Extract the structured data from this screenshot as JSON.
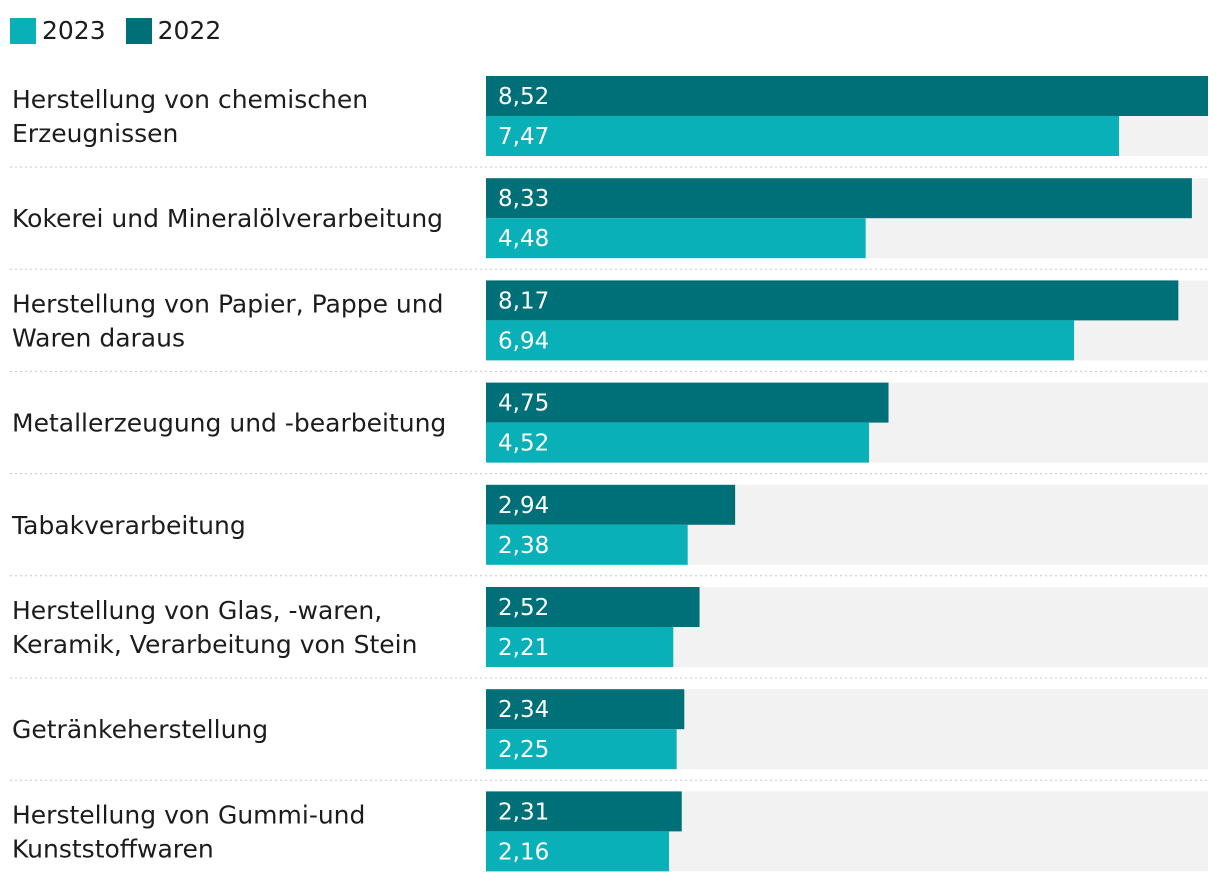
{
  "colors": {
    "y2023": "#0ab0b8",
    "y2022": "#007078",
    "track": "#f2f2f2",
    "separator": "#c8c8c8"
  },
  "legend": [
    {
      "label": "2023",
      "color": "#0ab0b8"
    },
    {
      "label": "2022",
      "color": "#007078"
    }
  ],
  "chart_data": {
    "type": "bar",
    "orientation": "horizontal",
    "xlim": [
      0,
      8.52
    ],
    "categories": [
      [
        "Herstellung von chemischen",
        "Erzeugnissen"
      ],
      [
        "Kokerei und Mineralölverarbeitung"
      ],
      [
        "Herstellung von Papier, Pappe und",
        "Waren daraus"
      ],
      [
        "Metallerzeugung und -bearbeitung"
      ],
      [
        "Tabakverarbeitung"
      ],
      [
        "Herstellung von Glas, -waren,",
        "Keramik, Verarbeitung von Stein"
      ],
      [
        "Getränkeherstellung"
      ],
      [
        "Herstellung von Gummi-und",
        "Kunststoffwaren"
      ]
    ],
    "series": [
      {
        "name": "2022",
        "color": "#007078",
        "values": [
          8.52,
          8.33,
          8.17,
          4.75,
          2.94,
          2.52,
          2.34,
          2.31
        ],
        "labels": [
          "8,52",
          "8,33",
          "8,17",
          "4,75",
          "2,94",
          "2,52",
          "2,34",
          "2,31"
        ]
      },
      {
        "name": "2023",
        "color": "#0ab0b8",
        "values": [
          7.47,
          4.48,
          6.94,
          4.52,
          2.38,
          2.21,
          2.25,
          2.16
        ],
        "labels": [
          "7,47",
          "4,48",
          "6,94",
          "4,52",
          "2,38",
          "2,21",
          "2,25",
          "2,16"
        ]
      }
    ]
  }
}
